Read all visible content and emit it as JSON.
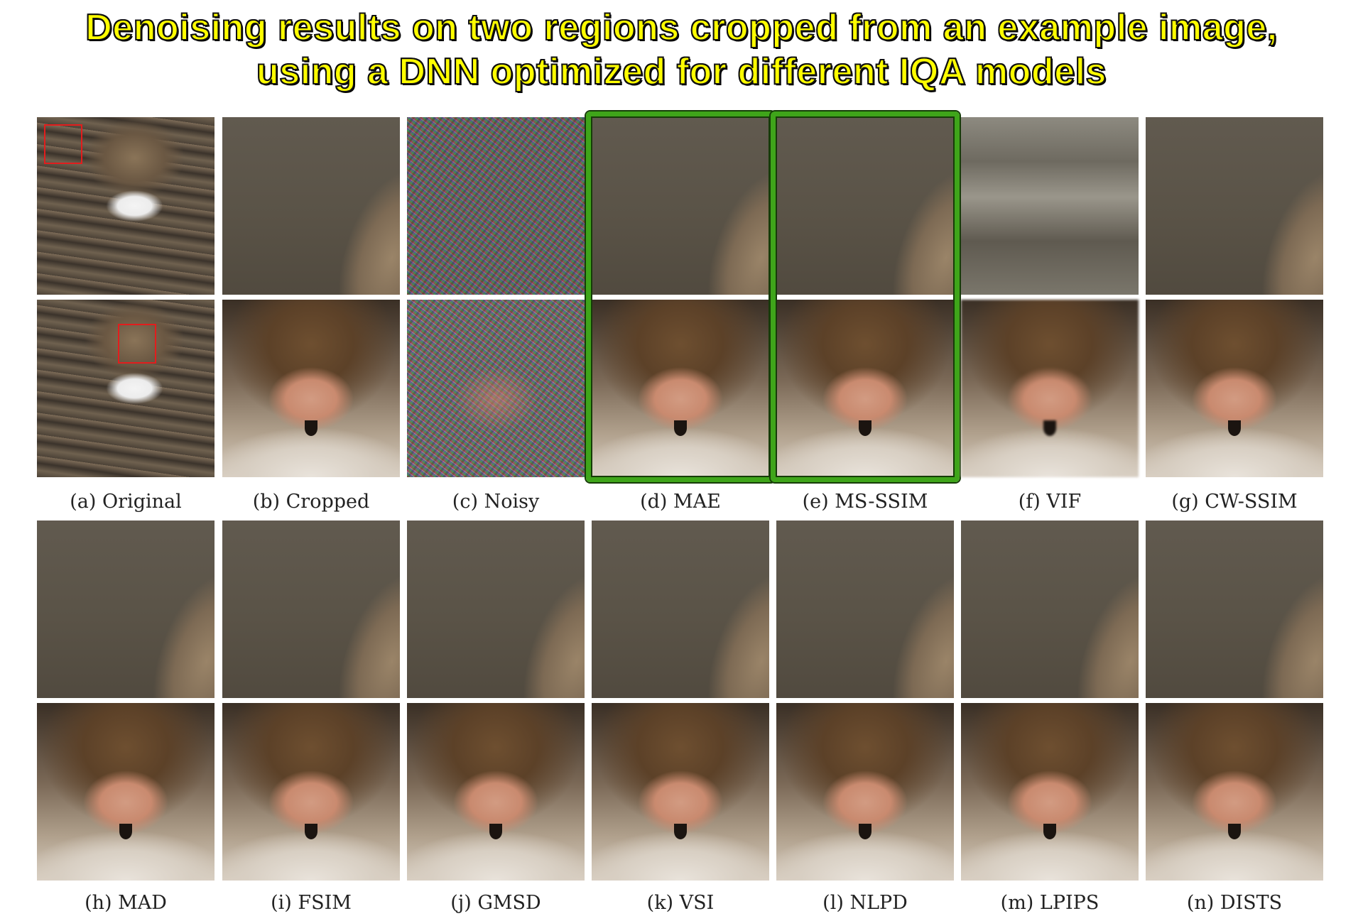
{
  "title": {
    "line1": "Denoising results on two regions cropped from an example image,",
    "line2": "using a DNN optimized for different IQA models"
  },
  "panels_row1": [
    {
      "id": "a",
      "label": "(a) Original",
      "kind": "original"
    },
    {
      "id": "b",
      "label": "(b) Cropped",
      "kind": "cropped"
    },
    {
      "id": "c",
      "label": "(c) Noisy",
      "kind": "noisy"
    },
    {
      "id": "d",
      "label": "(d) MAE",
      "kind": "result",
      "highlighted": true
    },
    {
      "id": "e",
      "label": "(e) MS-SSIM",
      "kind": "result",
      "highlighted": true
    },
    {
      "id": "f",
      "label": "(f) VIF",
      "kind": "vif"
    },
    {
      "id": "g",
      "label": "(g) CW-SSIM",
      "kind": "result"
    }
  ],
  "panels_row2": [
    {
      "id": "h",
      "label": "(h) MAD"
    },
    {
      "id": "i",
      "label": "(i) FSIM"
    },
    {
      "id": "j",
      "label": "(j) GMSD"
    },
    {
      "id": "k",
      "label": "(k) VSI"
    },
    {
      "id": "l",
      "label": "(l) NLPD"
    },
    {
      "id": "m",
      "label": "(m) LPIPS"
    },
    {
      "id": "n",
      "label": "(n) DISTS"
    }
  ],
  "colors": {
    "title_fill": "#ffff00",
    "highlight_border": "#3fa51a",
    "crop_box": "#e21d1d"
  }
}
